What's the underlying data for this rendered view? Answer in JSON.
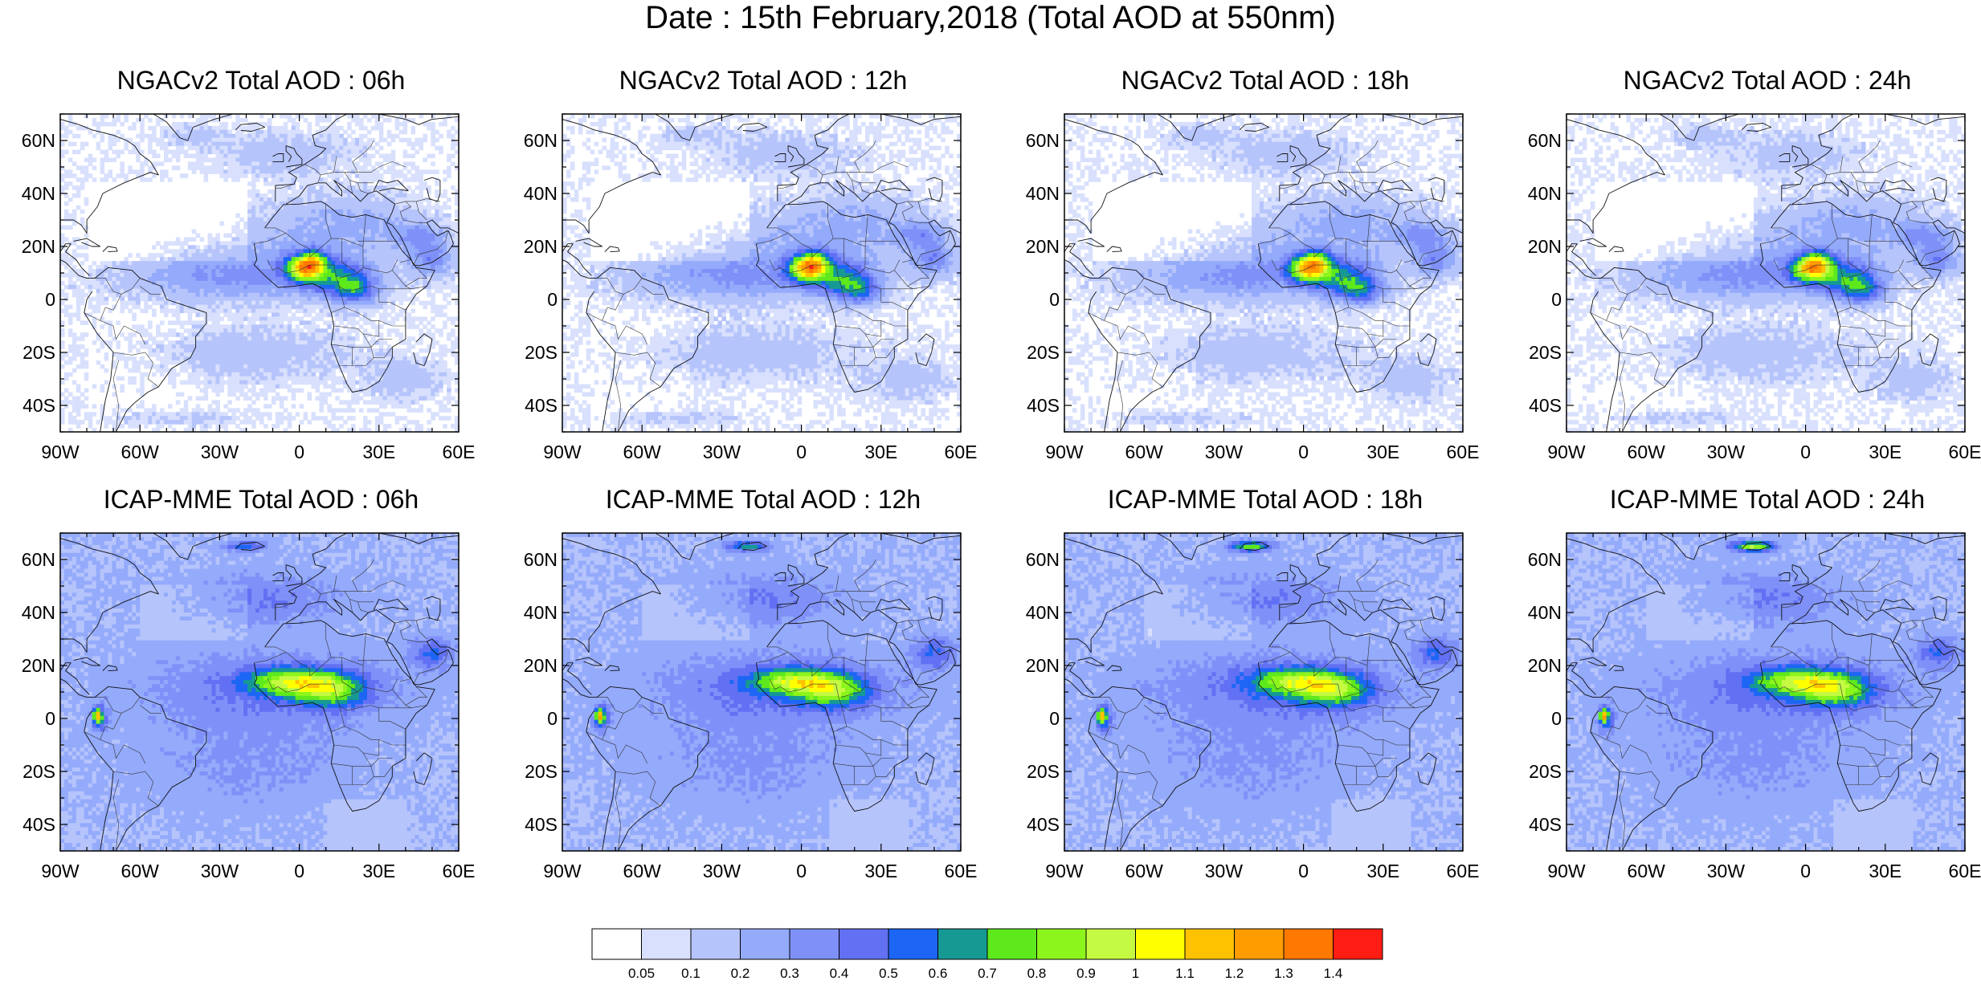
{
  "title": "Date : 15th February,2018 (Total AOD at 550nm)",
  "panels": [
    {
      "id": "ngac-06",
      "title": "NGACv2 Total AOD : 06h",
      "model": "ngac",
      "hour": 6
    },
    {
      "id": "ngac-12",
      "title": "NGACv2 Total AOD : 12h",
      "model": "ngac",
      "hour": 12
    },
    {
      "id": "ngac-18",
      "title": "NGACv2 Total AOD : 18h",
      "model": "ngac",
      "hour": 18
    },
    {
      "id": "ngac-24",
      "title": "NGACv2 Total AOD : 24h",
      "model": "ngac",
      "hour": 24
    },
    {
      "id": "icap-06",
      "title": "ICAP-MME Total AOD : 06h",
      "model": "icap",
      "hour": 6
    },
    {
      "id": "icap-12",
      "title": "ICAP-MME Total AOD : 12h",
      "model": "icap",
      "hour": 12
    },
    {
      "id": "icap-18",
      "title": "ICAP-MME Total AOD : 18h",
      "model": "icap",
      "hour": 18
    },
    {
      "id": "icap-24",
      "title": "ICAP-MME Total AOD : 24h",
      "model": "icap",
      "hour": 24
    }
  ],
  "lon_range": [
    -90,
    60
  ],
  "lat_range": [
    -50,
    70
  ],
  "lon_ticks": [
    {
      "v": -90,
      "label": "90W"
    },
    {
      "v": -60,
      "label": "60W"
    },
    {
      "v": -30,
      "label": "30W"
    },
    {
      "v": 0,
      "label": "0"
    },
    {
      "v": 30,
      "label": "30E"
    },
    {
      "v": 60,
      "label": "60E"
    }
  ],
  "lat_ticks": [
    {
      "v": 60,
      "label": "60N"
    },
    {
      "v": 40,
      "label": "40N"
    },
    {
      "v": 20,
      "label": "20N"
    },
    {
      "v": 0,
      "label": "0"
    },
    {
      "v": -20,
      "label": "20S"
    },
    {
      "v": -40,
      "label": "40S"
    }
  ],
  "colorbar": {
    "colors": [
      "#ffffff",
      "#d8e0fd",
      "#b6c4fc",
      "#94aafb",
      "#7f91f8",
      "#6270f3",
      "#1d66f5",
      "#169993",
      "#5ee91c",
      "#8cf51b",
      "#c4fa42",
      "#ffff00",
      "#ffc200",
      "#ff9c00",
      "#ff7800",
      "#ff1c12"
    ],
    "labels": [
      "0.05",
      "0.1",
      "0.2",
      "0.3",
      "0.4",
      "0.5",
      "0.6",
      "0.7",
      "0.8",
      "0.9",
      "1",
      "1.1",
      "1.2",
      "1.3",
      "1.4"
    ]
  }
}
